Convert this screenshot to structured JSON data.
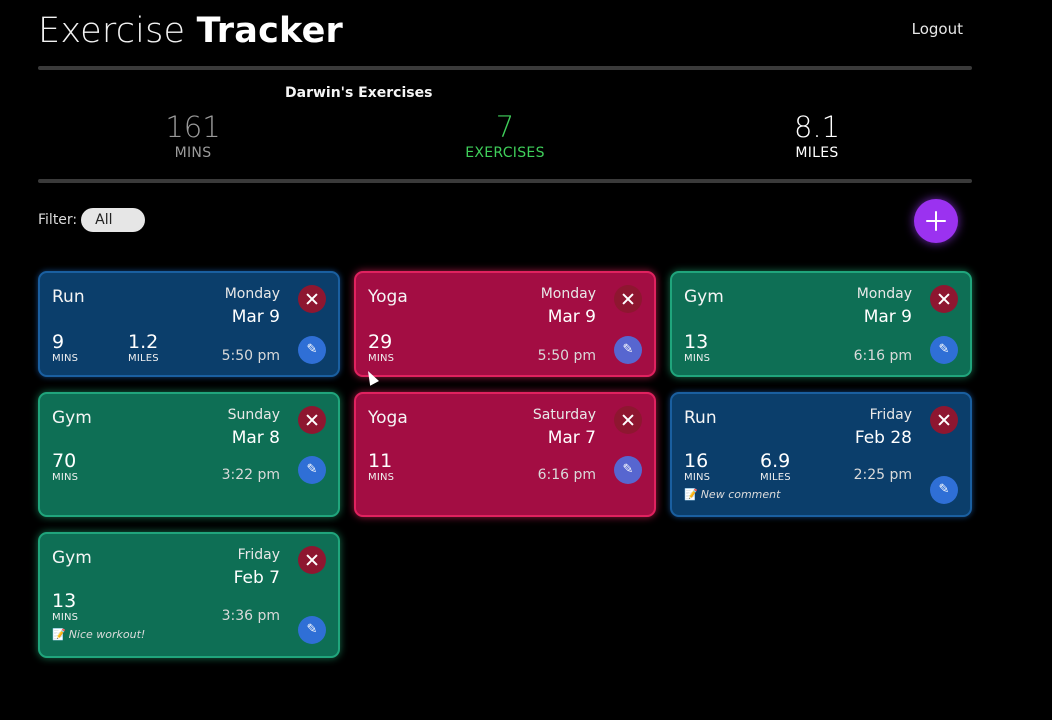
{
  "header": {
    "title_light": "Exercise",
    "title_bold": "Tracker",
    "logout_label": "Logout"
  },
  "summary": {
    "owner_label": "Darwin's Exercises",
    "mins_value": "161",
    "mins_label": "MINS",
    "exercises_value": "7",
    "exercises_label": "EXERCISES",
    "miles_value": "8.1",
    "miles_label": "MILES"
  },
  "filter": {
    "label": "Filter:",
    "value": "All"
  },
  "colors": {
    "run": "#0b3e6b",
    "yoga": "#a30d43",
    "gym": "#0e6f55",
    "accent": "#9b32f0",
    "exercises_green": "#3fcf5a"
  },
  "icons": {
    "add": "plus-icon",
    "delete": "close-icon",
    "edit": "pencil-icon",
    "comment": "memo-icon"
  },
  "cards": [
    {
      "type": "Run",
      "day": "Monday",
      "date": "Mar 9",
      "time": "5:50 pm",
      "mins": "9",
      "mins_label": "MINS",
      "miles": "1.2",
      "miles_label": "MILES",
      "comment": ""
    },
    {
      "type": "Yoga",
      "day": "Monday",
      "date": "Mar 9",
      "time": "5:50 pm",
      "mins": "29",
      "mins_label": "MINS",
      "comment": ""
    },
    {
      "type": "Gym",
      "day": "Monday",
      "date": "Mar 9",
      "time": "6:16 pm",
      "mins": "13",
      "mins_label": "MINS",
      "comment": ""
    },
    {
      "type": "Gym",
      "day": "Sunday",
      "date": "Mar 8",
      "time": "3:22 pm",
      "mins": "70",
      "mins_label": "MINS",
      "comment": ""
    },
    {
      "type": "Yoga",
      "day": "Saturday",
      "date": "Mar 7",
      "time": "6:16 pm",
      "mins": "11",
      "mins_label": "MINS",
      "comment": ""
    },
    {
      "type": "Run",
      "day": "Friday",
      "date": "Feb 28",
      "time": "2:25 pm",
      "mins": "16",
      "mins_label": "MINS",
      "miles": "6.9",
      "miles_label": "MILES",
      "comment": "New comment"
    },
    {
      "type": "Gym",
      "day": "Friday",
      "date": "Feb 7",
      "time": "3:36 pm",
      "mins": "13",
      "mins_label": "MINS",
      "comment": "Nice workout!"
    }
  ]
}
